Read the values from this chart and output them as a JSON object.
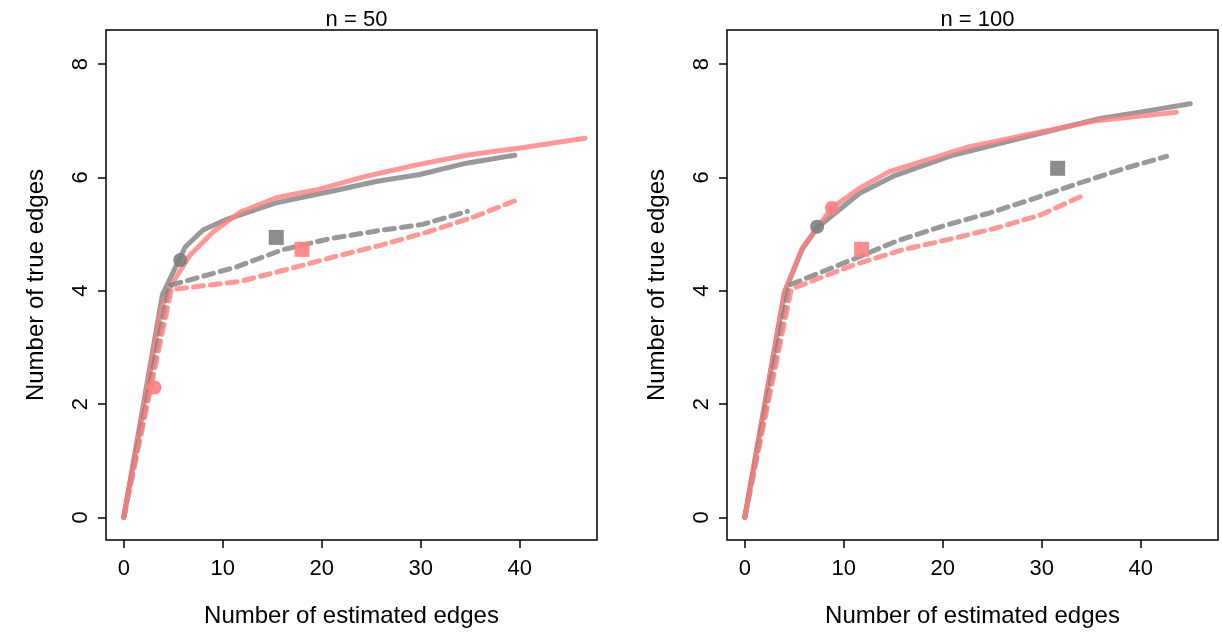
{
  "chart_data": [
    {
      "type": "line",
      "title": "n = 50",
      "xlabel": "Number of estimated edges",
      "ylabel": "Number of true edges",
      "xlim": [
        -1.8,
        47.8
      ],
      "ylim": [
        -0.4,
        8.6
      ],
      "xticks": [
        0,
        10,
        20,
        30,
        40
      ],
      "yticks": [
        0,
        2,
        4,
        6,
        8
      ],
      "series": [
        {
          "color": "#808080",
          "line_style": "solid",
          "marker": "none",
          "x": [
            0,
            3.9,
            6.2,
            8.0,
            10.4,
            15.4,
            21.1,
            25.6,
            29.9,
            34.6,
            39.5
          ],
          "values": [
            0,
            3.93,
            4.77,
            5.07,
            5.26,
            5.55,
            5.76,
            5.93,
            6.05,
            6.25,
            6.39
          ]
        },
        {
          "color": "#ff8080",
          "line_style": "solid",
          "marker": "none",
          "x": [
            0,
            3.8,
            4.8,
            6.7,
            9.0,
            11.7,
            15.4,
            19.5,
            24.5,
            29.6,
            34.6,
            39.7,
            46.6
          ],
          "values": [
            0,
            3.69,
            4.1,
            4.63,
            5.03,
            5.38,
            5.64,
            5.78,
            6.02,
            6.22,
            6.39,
            6.51,
            6.69
          ]
        },
        {
          "color": "#808080",
          "line_style": "dashed",
          "marker": "none",
          "x": [
            0,
            4.6,
            11.4,
            16,
            20.6,
            25.4,
            30.2,
            34.7
          ],
          "values": [
            0,
            4.09,
            4.42,
            4.72,
            4.91,
            5.05,
            5.17,
            5.4
          ]
        },
        {
          "color": "#ff8080",
          "line_style": "dashed",
          "marker": "none",
          "x": [
            0,
            4.8,
            11.7,
            16.6,
            21.1,
            25.9,
            30.6,
            35.2,
            39.7
          ],
          "values": [
            0,
            4.02,
            4.16,
            4.38,
            4.59,
            4.8,
            5.03,
            5.29,
            5.6
          ]
        },
        {
          "type": "scatter",
          "color": "#808080",
          "marker": "circle",
          "x": [
            5.7
          ],
          "values": [
            4.54
          ]
        },
        {
          "type": "scatter",
          "color": "#ff8080",
          "marker": "circle",
          "x": [
            3.1
          ],
          "values": [
            2.29
          ]
        },
        {
          "type": "scatter",
          "color": "#808080",
          "marker": "square",
          "x": [
            15.4
          ],
          "values": [
            4.94
          ]
        },
        {
          "type": "scatter",
          "color": "#ff8080",
          "marker": "square",
          "x": [
            18
          ],
          "values": [
            4.73
          ]
        }
      ]
    },
    {
      "type": "line",
      "title": "n = 100",
      "xlabel": "Number of estimated edges",
      "ylabel": "Number of true edges",
      "xlim": [
        -1.8,
        47.8
      ],
      "ylim": [
        -0.4,
        8.6
      ],
      "xticks": [
        0,
        10,
        20,
        30,
        40
      ],
      "yticks": [
        0,
        2,
        4,
        6,
        8
      ],
      "series": [
        {
          "color": "#808080",
          "line_style": "solid",
          "marker": "none",
          "x": [
            0,
            4.0,
            5.8,
            7.3,
            11.6,
            15,
            21,
            31.1,
            35.9,
            40.2,
            45
          ],
          "values": [
            0,
            3.97,
            4.73,
            5.11,
            5.72,
            6.02,
            6.39,
            6.83,
            7.04,
            7.16,
            7.3
          ]
        },
        {
          "color": "#ff8080",
          "line_style": "solid",
          "marker": "none",
          "x": [
            0,
            4.0,
            5.8,
            8.8,
            11.6,
            14.6,
            22.7,
            35.5,
            43.6
          ],
          "values": [
            0,
            3.97,
            4.75,
            5.46,
            5.81,
            6.1,
            6.54,
            7.0,
            7.15
          ]
        },
        {
          "color": "#808080",
          "line_style": "dashed",
          "marker": "none",
          "x": [
            0,
            4.5,
            10.9,
            15.4,
            20,
            24.7,
            29.3,
            33.8,
            38.4,
            42.6
          ],
          "values": [
            0,
            4.1,
            4.55,
            4.88,
            5.14,
            5.37,
            5.63,
            5.9,
            6.16,
            6.37
          ]
        },
        {
          "color": "#ff8080",
          "line_style": "dashed",
          "marker": "none",
          "x": [
            0,
            4.7,
            11.1,
            15.9,
            20.5,
            25.3,
            29.8,
            34.3
          ],
          "values": [
            0,
            4.03,
            4.46,
            4.72,
            4.9,
            5.1,
            5.33,
            5.69
          ]
        },
        {
          "type": "scatter",
          "color": "#808080",
          "marker": "circle",
          "x": [
            7.3
          ],
          "values": [
            5.13
          ]
        },
        {
          "type": "scatter",
          "color": "#ff8080",
          "marker": "circle",
          "x": [
            8.8
          ],
          "values": [
            5.46
          ]
        },
        {
          "type": "scatter",
          "color": "#808080",
          "marker": "square",
          "x": [
            31.6
          ],
          "values": [
            6.16
          ]
        },
        {
          "type": "scatter",
          "color": "#ff8080",
          "marker": "square",
          "x": [
            11.8
          ],
          "values": [
            4.73
          ]
        }
      ]
    }
  ]
}
